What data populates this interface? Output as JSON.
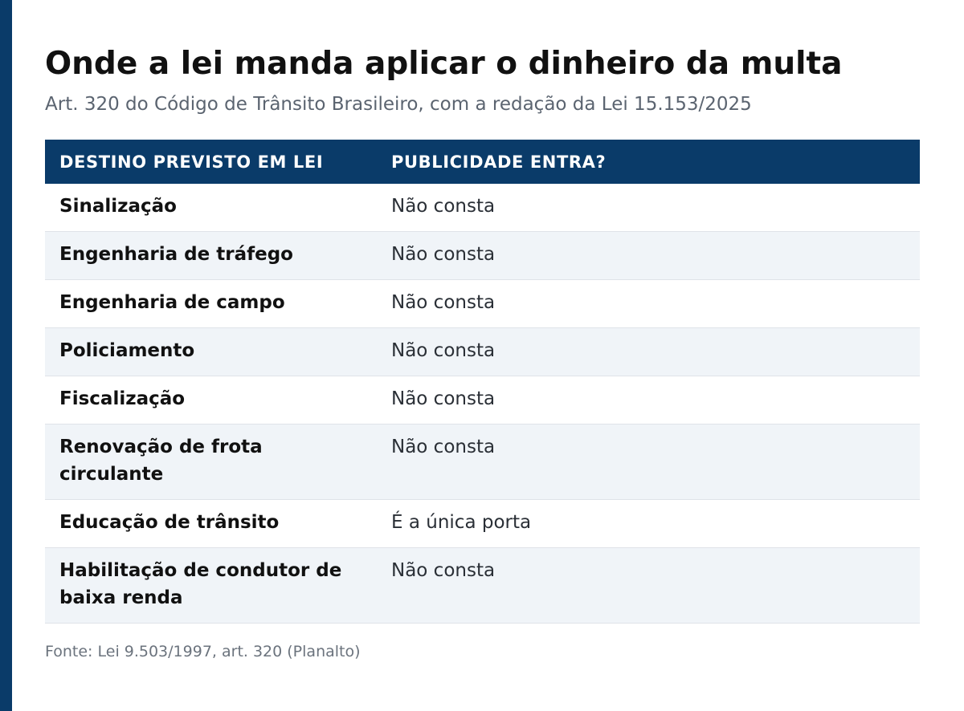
{
  "colors": {
    "accent": "#0a3b69",
    "header_bg": "#0a3b69",
    "row_alt_bg": "#f0f4f8"
  },
  "title": "Onde a lei manda aplicar o dinheiro da multa",
  "subtitle": "Art. 320 do Código de Trânsito Brasileiro, com a redação da Lei 15.153/2025",
  "table": {
    "headers": [
      "DESTINO PREVISTO EM LEI",
      "PUBLICIDADE ENTRA?"
    ],
    "rows": [
      {
        "destino": "Sinalização",
        "publicidade": "Não consta"
      },
      {
        "destino": "Engenharia de tráfego",
        "publicidade": "Não consta"
      },
      {
        "destino": "Engenharia de campo",
        "publicidade": "Não consta"
      },
      {
        "destino": "Policiamento",
        "publicidade": "Não consta"
      },
      {
        "destino": "Fiscalização",
        "publicidade": "Não consta"
      },
      {
        "destino": "Renovação de frota circulante",
        "publicidade": "Não consta"
      },
      {
        "destino": "Educação de trânsito",
        "publicidade": "É a única porta"
      },
      {
        "destino": "Habilitação de condutor de baixa renda",
        "publicidade": "Não consta"
      }
    ]
  },
  "source": "Fonte: Lei 9.503/1997, art. 320 (Planalto)"
}
